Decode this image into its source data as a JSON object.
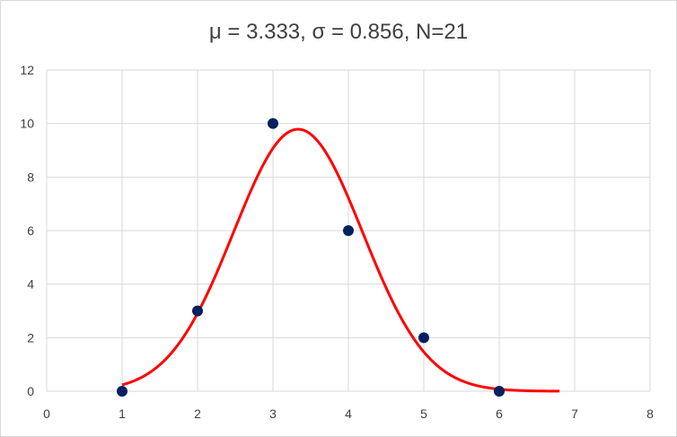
{
  "chart_data": {
    "type": "scatter",
    "title": "μ = 3.333, σ = 0.856, N=21",
    "xlabel": "",
    "ylabel": "",
    "xlim": [
      0,
      8
    ],
    "ylim": [
      0,
      12
    ],
    "xticks": [
      0,
      1,
      2,
      3,
      4,
      5,
      6,
      7,
      8
    ],
    "yticks": [
      0,
      2,
      4,
      6,
      8,
      10,
      12
    ],
    "grid": true,
    "legend": "none",
    "series": [
      {
        "type": "scatter",
        "color": "#002060",
        "x": [
          1,
          2,
          3,
          4,
          5,
          6
        ],
        "y": [
          0,
          3,
          10,
          6,
          2,
          0
        ]
      },
      {
        "type": "line",
        "color": "#ff0000",
        "mu": 3.333,
        "sigma": 0.856,
        "n": 21,
        "x_start": 1,
        "x_end": 6.8
      }
    ]
  }
}
